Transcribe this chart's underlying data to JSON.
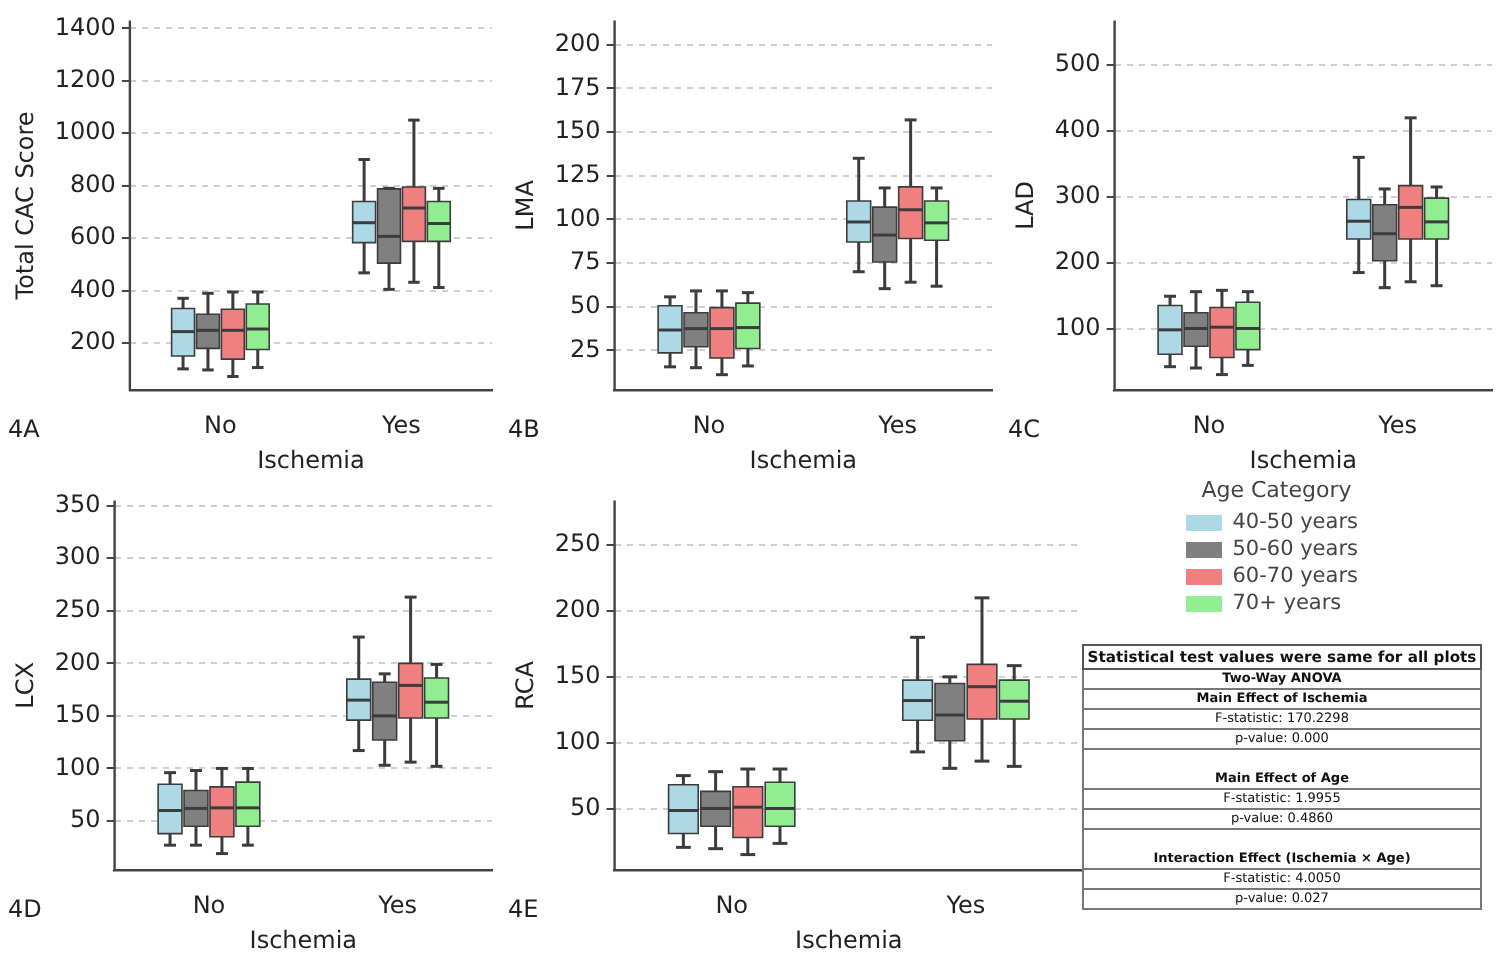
{
  "chart_data": [
    {
      "type": "box",
      "ylabel": "Total CAC Score",
      "xlabel": "Ischemia",
      "categories": [
        "No",
        "Yes"
      ],
      "ylim": [
        20,
        1430
      ],
      "yticks": [
        200,
        400,
        600,
        800,
        1000,
        1200,
        1400
      ],
      "grid": "y",
      "annotations": [
        "4A"
      ],
      "series": [
        {
          "color": "#add8e6",
          "boxes": [
            {
              "low": 102,
              "q1": 151,
              "median": 244,
              "q3": 332,
              "high": 371
            },
            {
              "low": 468,
              "q1": 583,
              "median": 659,
              "q3": 740,
              "high": 900
            }
          ]
        },
        {
          "color": "#808080",
          "boxes": [
            {
              "low": 98,
              "q1": 180,
              "median": 249,
              "q3": 310,
              "high": 390
            },
            {
              "low": 405,
              "q1": 505,
              "median": 607,
              "q3": 788,
              "high": 790
            }
          ]
        },
        {
          "color": "#f08080",
          "boxes": [
            {
              "low": 73,
              "q1": 139,
              "median": 249,
              "q3": 329,
              "high": 395
            },
            {
              "low": 432,
              "q1": 588,
              "median": 715,
              "q3": 795,
              "high": 1050
            }
          ]
        },
        {
          "color": "#90ee90",
          "boxes": [
            {
              "low": 107,
              "q1": 176,
              "median": 254,
              "q3": 349,
              "high": 395
            },
            {
              "low": 412,
              "q1": 588,
              "median": 656,
              "q3": 740,
              "high": 790
            }
          ]
        }
      ]
    },
    {
      "type": "box",
      "ylabel": "LMA",
      "xlabel": "Ischemia",
      "categories": [
        "No",
        "Yes"
      ],
      "ylim": [
        2,
        214
      ],
      "yticks": [
        25,
        50,
        75,
        100,
        125,
        150,
        175,
        200
      ],
      "grid": "y",
      "annotations": [
        "4B"
      ],
      "series": [
        {
          "color": "#add8e6",
          "boxes": [
            {
              "low": 15.5,
              "q1": 23.5,
              "median": 36.6,
              "q3": 50.5,
              "high": 55.6
            },
            {
              "low": 70,
              "q1": 87,
              "median": 98.5,
              "q3": 110.5,
              "high": 135
            }
          ]
        },
        {
          "color": "#808080",
          "boxes": [
            {
              "low": 15,
              "q1": 27,
              "median": 37.4,
              "q3": 46.5,
              "high": 59
            },
            {
              "low": 60.3,
              "q1": 75.6,
              "median": 91,
              "q3": 107,
              "high": 118
            }
          ]
        },
        {
          "color": "#f08080",
          "boxes": [
            {
              "low": 11,
              "q1": 20.6,
              "median": 37.4,
              "q3": 49.4,
              "high": 59
            },
            {
              "low": 64,
              "q1": 89,
              "median": 105.5,
              "q3": 118.6,
              "high": 157
            }
          ]
        },
        {
          "color": "#90ee90",
          "boxes": [
            {
              "low": 16,
              "q1": 26,
              "median": 38,
              "q3": 52,
              "high": 58
            },
            {
              "low": 61.7,
              "q1": 88,
              "median": 98,
              "q3": 110.5,
              "high": 118
            }
          ]
        }
      ]
    },
    {
      "type": "box",
      "ylabel": "LAD",
      "xlabel": "Ischemia",
      "categories": [
        "No",
        "Yes"
      ],
      "ylim": [
        6,
        568
      ],
      "yticks": [
        100,
        200,
        300,
        400,
        500
      ],
      "grid": "y",
      "annotations": [
        "4C"
      ],
      "series": [
        {
          "color": "#add8e6",
          "boxes": [
            {
              "low": 42,
              "q1": 61,
              "median": 98,
              "q3": 135,
              "high": 149
            },
            {
              "low": 185,
              "q1": 236,
              "median": 263,
              "q3": 296,
              "high": 360
            }
          ]
        },
        {
          "color": "#808080",
          "boxes": [
            {
              "low": 40,
              "q1": 73,
              "median": 100,
              "q3": 124,
              "high": 156
            },
            {
              "low": 162,
              "q1": 203,
              "median": 244,
              "q3": 288,
              "high": 312
            }
          ]
        },
        {
          "color": "#f08080",
          "boxes": [
            {
              "low": 30,
              "q1": 56,
              "median": 102,
              "q3": 132,
              "high": 158
            },
            {
              "low": 171,
              "q1": 236,
              "median": 284,
              "q3": 317,
              "high": 420
            }
          ]
        },
        {
          "color": "#90ee90",
          "boxes": [
            {
              "low": 44,
              "q1": 68,
              "median": 100,
              "q3": 140,
              "high": 156
            },
            {
              "low": 165,
              "q1": 236,
              "median": 262,
              "q3": 298,
              "high": 315
            }
          ]
        }
      ]
    },
    {
      "type": "box",
      "ylabel": "LCX",
      "xlabel": "Ischemia",
      "categories": [
        "No",
        "Yes"
      ],
      "ylim": [
        3,
        355
      ],
      "yticks": [
        50,
        100,
        150,
        200,
        250,
        300,
        350
      ],
      "grid": "y",
      "annotations": [
        "4D"
      ],
      "series": [
        {
          "color": "#add8e6",
          "boxes": [
            {
              "low": 27,
              "q1": 38,
              "median": 60,
              "q3": 85,
              "high": 96
            },
            {
              "low": 117,
              "q1": 146,
              "median": 165,
              "q3": 185,
              "high": 225
            }
          ]
        },
        {
          "color": "#808080",
          "boxes": [
            {
              "low": 27,
              "q1": 45,
              "median": 62,
              "q3": 79,
              "high": 98
            },
            {
              "low": 103,
              "q1": 127,
              "median": 150,
              "q3": 182,
              "high": 190
            }
          ]
        },
        {
          "color": "#f08080",
          "boxes": [
            {
              "low": 19,
              "q1": 35,
              "median": 62.5,
              "q3": 82.5,
              "high": 100
            },
            {
              "low": 106,
              "q1": 148,
              "median": 179,
              "q3": 200,
              "high": 263
            }
          ]
        },
        {
          "color": "#90ee90",
          "boxes": [
            {
              "low": 27,
              "q1": 45,
              "median": 62.5,
              "q3": 87,
              "high": 100
            },
            {
              "low": 102,
              "q1": 148,
              "median": 163,
              "q3": 186,
              "high": 199
            }
          ]
        }
      ]
    },
    {
      "type": "box",
      "ylabel": "RCA",
      "xlabel": "Ischemia",
      "categories": [
        "No",
        "Yes"
      ],
      "ylim": [
        3,
        284
      ],
      "yticks": [
        50,
        100,
        150,
        200,
        250
      ],
      "grid": "y",
      "annotations": [
        "4E"
      ],
      "legend": "right",
      "legend_title": "Age Category",
      "series": [
        {
          "name": "40-50 years",
          "color": "#add8e6",
          "boxes": [
            {
              "low": 20.5,
              "q1": 31,
              "median": 48.5,
              "q3": 68,
              "high": 75
            },
            {
              "low": 93,
              "q1": 117,
              "median": 132,
              "q3": 147.5,
              "high": 180
            }
          ]
        },
        {
          "name": "50-60 years",
          "color": "#808080",
          "boxes": [
            {
              "low": 19.5,
              "q1": 36.5,
              "median": 50,
              "q3": 63,
              "high": 78
            },
            {
              "low": 80.5,
              "q1": 101.5,
              "median": 121,
              "q3": 145,
              "high": 150
            }
          ]
        },
        {
          "name": "60-70 years",
          "color": "#f08080",
          "boxes": [
            {
              "low": 15,
              "q1": 28,
              "median": 51,
              "q3": 66.5,
              "high": 80
            },
            {
              "low": 86,
              "q1": 118,
              "median": 142.5,
              "q3": 159.5,
              "high": 210
            }
          ]
        },
        {
          "name": "70+ years",
          "color": "#90ee90",
          "boxes": [
            {
              "low": 23.5,
              "q1": 36.5,
              "median": 50,
              "q3": 70,
              "high": 80
            },
            {
              "low": 82,
              "q1": 118,
              "median": 131.5,
              "q3": 147.5,
              "high": 158.5
            }
          ]
        }
      ]
    },
    {
      "type": "other",
      "title": "Statistical test values were same for all plots",
      "annotations": [
        "Two-Way ANOVA",
        "Main Effect of Ischemia",
        "F-statistic: 170.2298",
        "p-value: 0.000",
        "Main Effect of Age",
        "F-statistic: 1.9955",
        "p-value: 0.4860",
        "Interaction Effect (Ischemia × Age)",
        "F-statistic: 4.0050",
        "p-value: 0.027"
      ]
    }
  ]
}
